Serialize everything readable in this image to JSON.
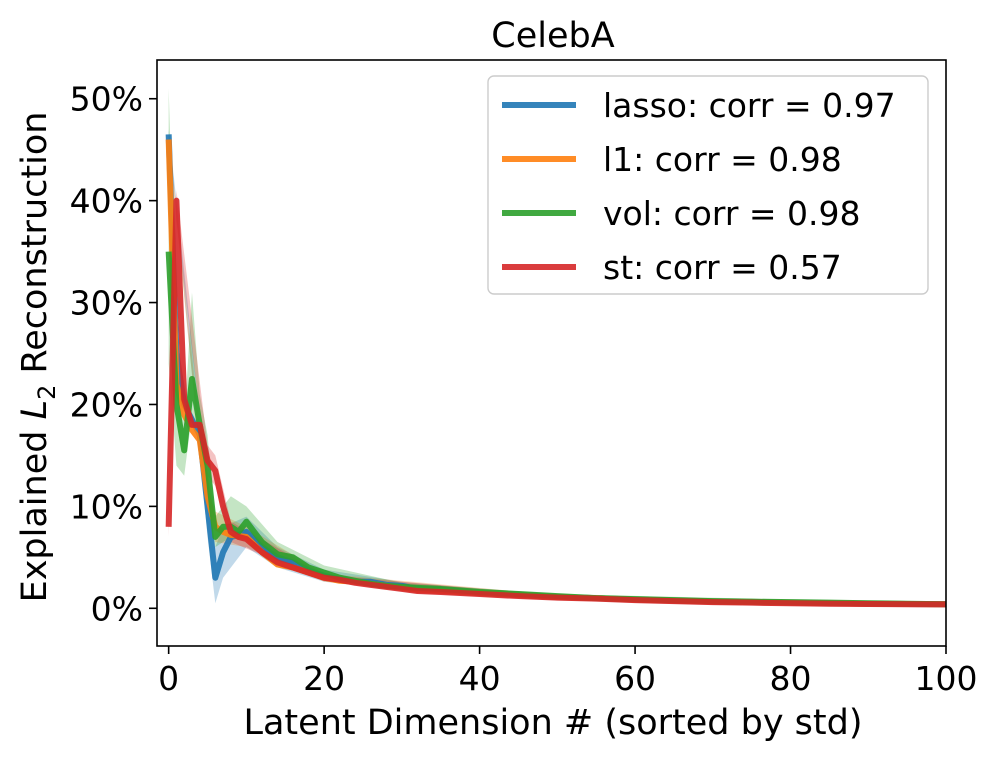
{
  "chart_data": {
    "type": "line",
    "title": "CelebA",
    "xlabel": "Latent Dimension # (sorted by std)",
    "ylabel": {
      "before": "Explained ",
      "var": "L",
      "sub": "2",
      "after": " Reconstruction"
    },
    "xlim": [
      -1.5,
      100
    ],
    "ylim": [
      -3.7,
      53.8
    ],
    "x_ticks": [
      0,
      20,
      40,
      60,
      80,
      100
    ],
    "y_ticks": [
      0,
      10,
      20,
      30,
      40,
      50
    ],
    "y_tick_labels": [
      "0%",
      "10%",
      "20%",
      "30%",
      "40%",
      "50%"
    ],
    "legend_position": "top-right",
    "series": [
      {
        "name": "lasso: corr = 0.97",
        "color": "#1f77b4",
        "points": [
          [
            0,
            46.5
          ],
          [
            1,
            25
          ],
          [
            2,
            20
          ],
          [
            3,
            18.5
          ],
          [
            4,
            17
          ],
          [
            5,
            10
          ],
          [
            6,
            3
          ],
          [
            7,
            5.5
          ],
          [
            8,
            7
          ],
          [
            9,
            7.2
          ],
          [
            10,
            7.5
          ],
          [
            12,
            6
          ],
          [
            14,
            5
          ],
          [
            16,
            4.5
          ],
          [
            18,
            3.7
          ],
          [
            20,
            3.2
          ],
          [
            22,
            2.8
          ],
          [
            24,
            2.6
          ],
          [
            26,
            2.6
          ],
          [
            28,
            2.3
          ],
          [
            30,
            2.2
          ],
          [
            32,
            1.9
          ],
          [
            35,
            1.8
          ],
          [
            40,
            1.5
          ],
          [
            45,
            1.3
          ],
          [
            50,
            1.1
          ],
          [
            55,
            1.0
          ],
          [
            60,
            0.85
          ],
          [
            65,
            0.75
          ],
          [
            70,
            0.65
          ],
          [
            75,
            0.6
          ],
          [
            80,
            0.55
          ],
          [
            85,
            0.5
          ],
          [
            90,
            0.45
          ],
          [
            95,
            0.42
          ],
          [
            100,
            0.4
          ]
        ],
        "band": [
          [
            0,
            46.5,
            47
          ],
          [
            4,
            15,
            19
          ],
          [
            5,
            7,
            12
          ],
          [
            6,
            0.5,
            6
          ],
          [
            7,
            3,
            8
          ],
          [
            10,
            6,
            9
          ],
          [
            14,
            4,
            6
          ],
          [
            20,
            2.6,
            3.8
          ],
          [
            30,
            1.8,
            2.6
          ],
          [
            50,
            0.9,
            1.3
          ],
          [
            100,
            0.3,
            0.5
          ]
        ]
      },
      {
        "name": "l1: corr = 0.98",
        "color": "#ff7f0e",
        "points": [
          [
            0,
            46
          ],
          [
            1,
            22
          ],
          [
            2,
            19
          ],
          [
            3,
            17.5
          ],
          [
            4,
            16.5
          ],
          [
            5,
            11
          ],
          [
            6,
            8
          ],
          [
            7,
            7.5
          ],
          [
            8,
            7.2
          ],
          [
            10,
            7
          ],
          [
            12,
            5.5
          ],
          [
            14,
            4.3
          ],
          [
            16,
            4
          ],
          [
            18,
            3.5
          ],
          [
            20,
            3
          ],
          [
            22,
            2.7
          ],
          [
            24,
            2.6
          ],
          [
            26,
            2.4
          ],
          [
            28,
            2.2
          ],
          [
            30,
            2
          ],
          [
            32,
            1.8
          ],
          [
            35,
            1.7
          ],
          [
            40,
            1.5
          ],
          [
            45,
            1.3
          ],
          [
            50,
            1.1
          ],
          [
            55,
            1.0
          ],
          [
            60,
            0.85
          ],
          [
            65,
            0.75
          ],
          [
            70,
            0.65
          ],
          [
            75,
            0.6
          ],
          [
            80,
            0.55
          ],
          [
            85,
            0.5
          ],
          [
            90,
            0.45
          ],
          [
            95,
            0.42
          ],
          [
            100,
            0.4
          ]
        ],
        "band": [
          [
            0,
            45.5,
            46.5
          ],
          [
            4,
            15.5,
            17.5
          ],
          [
            6,
            6.5,
            9.5
          ],
          [
            10,
            6,
            8
          ],
          [
            20,
            2.6,
            3.4
          ],
          [
            50,
            0.9,
            1.3
          ],
          [
            100,
            0.3,
            0.5
          ]
        ]
      },
      {
        "name": "vol: corr = 0.98",
        "color": "#2ca02c",
        "points": [
          [
            0,
            35
          ],
          [
            1,
            20
          ],
          [
            2,
            15.5
          ],
          [
            3,
            22.5
          ],
          [
            4,
            18
          ],
          [
            5,
            14
          ],
          [
            6,
            7
          ],
          [
            7,
            8
          ],
          [
            8,
            8
          ],
          [
            9,
            7.5
          ],
          [
            10,
            8.5
          ],
          [
            12,
            6.5
          ],
          [
            14,
            5.3
          ],
          [
            16,
            5
          ],
          [
            18,
            4
          ],
          [
            20,
            3.5
          ],
          [
            22,
            3
          ],
          [
            24,
            2.7
          ],
          [
            26,
            2.4
          ],
          [
            28,
            2.2
          ],
          [
            30,
            2.1
          ],
          [
            32,
            2
          ],
          [
            35,
            1.9
          ],
          [
            40,
            1.6
          ],
          [
            45,
            1.4
          ],
          [
            50,
            1.2
          ],
          [
            55,
            1.0
          ],
          [
            60,
            0.9
          ],
          [
            65,
            0.8
          ],
          [
            70,
            0.7
          ],
          [
            75,
            0.65
          ],
          [
            80,
            0.6
          ],
          [
            85,
            0.55
          ],
          [
            90,
            0.5
          ],
          [
            95,
            0.45
          ],
          [
            100,
            0.4
          ]
        ],
        "band": [
          [
            0,
            24,
            51
          ],
          [
            1,
            14,
            26
          ],
          [
            2,
            13,
            18
          ],
          [
            3,
            19,
            31
          ],
          [
            4,
            16,
            21
          ],
          [
            5,
            11,
            17
          ],
          [
            6,
            6,
            9
          ],
          [
            8,
            7,
            11
          ],
          [
            10,
            7,
            10
          ],
          [
            14,
            4.5,
            6.5
          ],
          [
            20,
            3,
            4.2
          ],
          [
            30,
            1.8,
            2.5
          ],
          [
            50,
            1,
            1.4
          ],
          [
            100,
            0.3,
            0.5
          ]
        ]
      },
      {
        "name": "st: corr = 0.57",
        "color": "#d62728",
        "points": [
          [
            0,
            8
          ],
          [
            1,
            40
          ],
          [
            2,
            20.5
          ],
          [
            3,
            18
          ],
          [
            4,
            18
          ],
          [
            5,
            14.5
          ],
          [
            6,
            13.5
          ],
          [
            7,
            10
          ],
          [
            8,
            7.5
          ],
          [
            9,
            7
          ],
          [
            10,
            6.8
          ],
          [
            12,
            5.5
          ],
          [
            14,
            4.5
          ],
          [
            16,
            4
          ],
          [
            18,
            3.5
          ],
          [
            20,
            3
          ],
          [
            22,
            2.8
          ],
          [
            24,
            2.5
          ],
          [
            26,
            2.3
          ],
          [
            28,
            2.1
          ],
          [
            30,
            1.9
          ],
          [
            32,
            1.7
          ],
          [
            35,
            1.6
          ],
          [
            40,
            1.4
          ],
          [
            45,
            1.2
          ],
          [
            50,
            1.05
          ],
          [
            55,
            0.95
          ],
          [
            60,
            0.8
          ],
          [
            65,
            0.7
          ],
          [
            70,
            0.6
          ],
          [
            75,
            0.55
          ],
          [
            80,
            0.5
          ],
          [
            85,
            0.45
          ],
          [
            90,
            0.42
          ],
          [
            95,
            0.4
          ],
          [
            100,
            0.38
          ]
        ],
        "band": [
          [
            0,
            7,
            9
          ],
          [
            1,
            38,
            41
          ],
          [
            5,
            13,
            16
          ],
          [
            6,
            12,
            15
          ],
          [
            8,
            6.5,
            8.5
          ],
          [
            20,
            2.7,
            3.3
          ],
          [
            50,
            0.9,
            1.2
          ],
          [
            100,
            0.3,
            0.45
          ]
        ]
      }
    ]
  }
}
